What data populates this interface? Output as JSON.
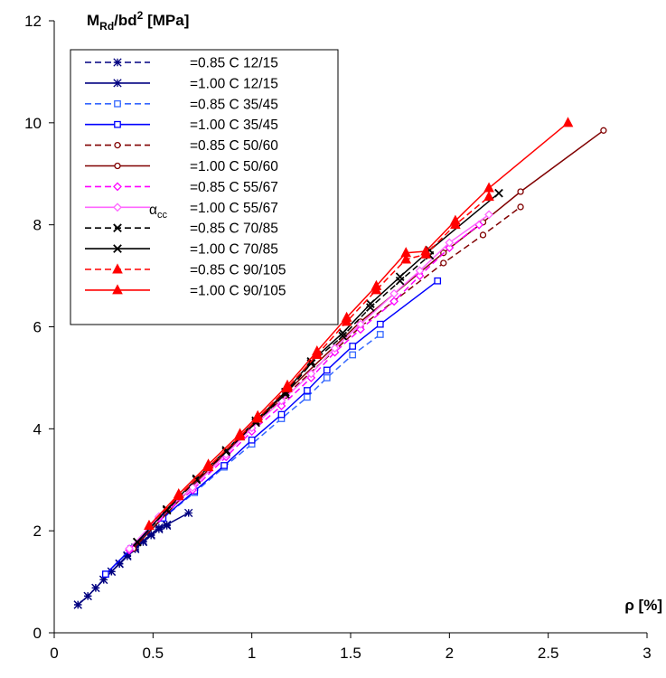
{
  "chart_data": {
    "type": "line",
    "ylabel": {
      "main": "M",
      "sub": "Rd",
      "mid": "/bd",
      "sup": "2",
      "unit": " [MPa]"
    },
    "xlabel": "ρ [%]",
    "legend_label": {
      "main": "α",
      "sub": "cc"
    },
    "xlim": [
      0,
      3
    ],
    "ylim": [
      0,
      12
    ],
    "xticks": [
      "0",
      "0.5",
      "1",
      "1.5",
      "2",
      "2.5",
      "3"
    ],
    "yticks": [
      "0",
      "2",
      "4",
      "6",
      "8",
      "10",
      "12"
    ],
    "grid": false,
    "legend_position": "top-left",
    "series": [
      {
        "name": "=0.85 C 12/15",
        "color": "#000080",
        "dash": true,
        "marker": "asterisk",
        "x": [
          0.12,
          0.17,
          0.21,
          0.25,
          0.29,
          0.33,
          0.37,
          0.41,
          0.45,
          0.49,
          0.53,
          0.57
        ],
        "y": [
          0.55,
          0.72,
          0.88,
          1.04,
          1.2,
          1.35,
          1.5,
          1.64,
          1.78,
          1.91,
          2.03,
          2.1
        ]
      },
      {
        "name": "=1.00 C 12/15",
        "color": "#000080",
        "dash": false,
        "marker": "asterisk",
        "x": [
          0.12,
          0.17,
          0.21,
          0.25,
          0.29,
          0.33,
          0.37,
          0.41,
          0.45,
          0.49,
          0.53,
          0.57,
          0.68
        ],
        "y": [
          0.55,
          0.72,
          0.88,
          1.04,
          1.2,
          1.36,
          1.52,
          1.67,
          1.8,
          1.93,
          2.06,
          2.12,
          2.35
        ]
      },
      {
        "name": "=0.85 C 35/45",
        "color": "#3366ff",
        "dash": true,
        "marker": "square",
        "x": [
          0.26,
          0.39,
          0.55,
          0.71,
          0.86,
          1.0,
          1.15,
          1.28,
          1.38,
          1.51,
          1.65
        ],
        "y": [
          1.15,
          1.65,
          2.25,
          2.75,
          3.25,
          3.7,
          4.2,
          4.62,
          5.0,
          5.45,
          5.85
        ]
      },
      {
        "name": "=1.00 C 35/45",
        "color": "#0000ff",
        "dash": false,
        "marker": "square",
        "x": [
          0.26,
          0.39,
          0.55,
          0.71,
          0.86,
          1.0,
          1.15,
          1.28,
          1.38,
          1.51,
          1.65,
          1.94
        ],
        "y": [
          1.15,
          1.65,
          2.25,
          2.78,
          3.28,
          3.78,
          4.28,
          4.75,
          5.15,
          5.62,
          6.05,
          6.9
        ]
      },
      {
        "name": "=0.85 C 50/60",
        "color": "#800000",
        "dash": true,
        "marker": "circle",
        "x": [
          0.4,
          0.78,
          1.17,
          1.55,
          1.97,
          2.17,
          2.36
        ],
        "y": [
          1.65,
          3.2,
          4.65,
          6.0,
          7.25,
          7.8,
          8.35
        ]
      },
      {
        "name": "=1.00 C 50/60",
        "color": "#800000",
        "dash": false,
        "marker": "circle",
        "x": [
          0.4,
          0.78,
          1.17,
          1.55,
          1.97,
          2.17,
          2.36,
          2.78
        ],
        "y": [
          1.65,
          3.2,
          4.7,
          6.1,
          7.45,
          8.05,
          8.65,
          9.85
        ]
      },
      {
        "name": "=0.85 C 55/67",
        "color": "#ff00ff",
        "dash": true,
        "marker": "diamond",
        "x": [
          0.38,
          0.53,
          0.7,
          0.87,
          1.0,
          1.15,
          1.3,
          1.42,
          1.55,
          1.72,
          1.85,
          2.0,
          2.15
        ],
        "y": [
          1.62,
          2.25,
          2.8,
          3.45,
          3.95,
          4.45,
          5.0,
          5.5,
          5.95,
          6.5,
          7.0,
          7.55,
          8.0
        ]
      },
      {
        "name": "=1.00 C 55/67",
        "color": "#ff66ff",
        "dash": false,
        "marker": "diamond",
        "x": [
          0.38,
          0.53,
          0.7,
          0.87,
          1.0,
          1.15,
          1.3,
          1.42,
          1.55,
          1.72,
          1.85,
          2.0,
          2.2
        ],
        "y": [
          1.65,
          2.28,
          2.85,
          3.5,
          4.02,
          4.55,
          5.08,
          5.58,
          6.05,
          6.65,
          7.1,
          7.65,
          8.2
        ]
      },
      {
        "name": "=0.85 C 70/85",
        "color": "#000000",
        "dash": true,
        "marker": "x",
        "x": [
          0.42,
          0.57,
          0.72,
          0.87,
          1.02,
          1.17,
          1.3,
          1.46,
          1.6,
          1.75,
          1.9
        ],
        "y": [
          1.78,
          2.4,
          3.0,
          3.55,
          4.12,
          4.68,
          5.28,
          5.82,
          6.38,
          6.9,
          7.4
        ]
      },
      {
        "name": "=1.00 C 70/85",
        "color": "#000000",
        "dash": false,
        "marker": "x",
        "x": [
          0.42,
          0.57,
          0.72,
          0.87,
          1.02,
          1.17,
          1.3,
          1.46,
          1.6,
          1.75,
          1.9,
          2.25
        ],
        "y": [
          1.78,
          2.42,
          3.02,
          3.58,
          4.16,
          4.72,
          5.32,
          5.88,
          6.45,
          6.98,
          7.5,
          8.62
        ]
      },
      {
        "name": "=0.85 C 90/105",
        "color": "#ff0000",
        "dash": true,
        "marker": "triangle",
        "x": [
          0.48,
          0.63,
          0.78,
          0.94,
          1.03,
          1.18,
          1.33,
          1.48,
          1.63,
          1.78,
          1.88,
          2.03,
          2.2
        ],
        "y": [
          2.1,
          2.68,
          3.25,
          3.85,
          4.2,
          4.8,
          5.45,
          6.1,
          6.72,
          7.32,
          7.42,
          8.0,
          8.55
        ]
      },
      {
        "name": "=1.00 C 90/105",
        "color": "#ff0000",
        "dash": false,
        "marker": "triangle",
        "x": [
          0.48,
          0.63,
          0.78,
          0.94,
          1.03,
          1.18,
          1.33,
          1.48,
          1.63,
          1.78,
          1.88,
          2.03,
          2.2,
          2.6
        ],
        "y": [
          2.1,
          2.72,
          3.3,
          3.9,
          4.25,
          4.85,
          5.52,
          6.18,
          6.8,
          7.45,
          7.48,
          8.08,
          8.72,
          10.0
        ]
      }
    ]
  }
}
